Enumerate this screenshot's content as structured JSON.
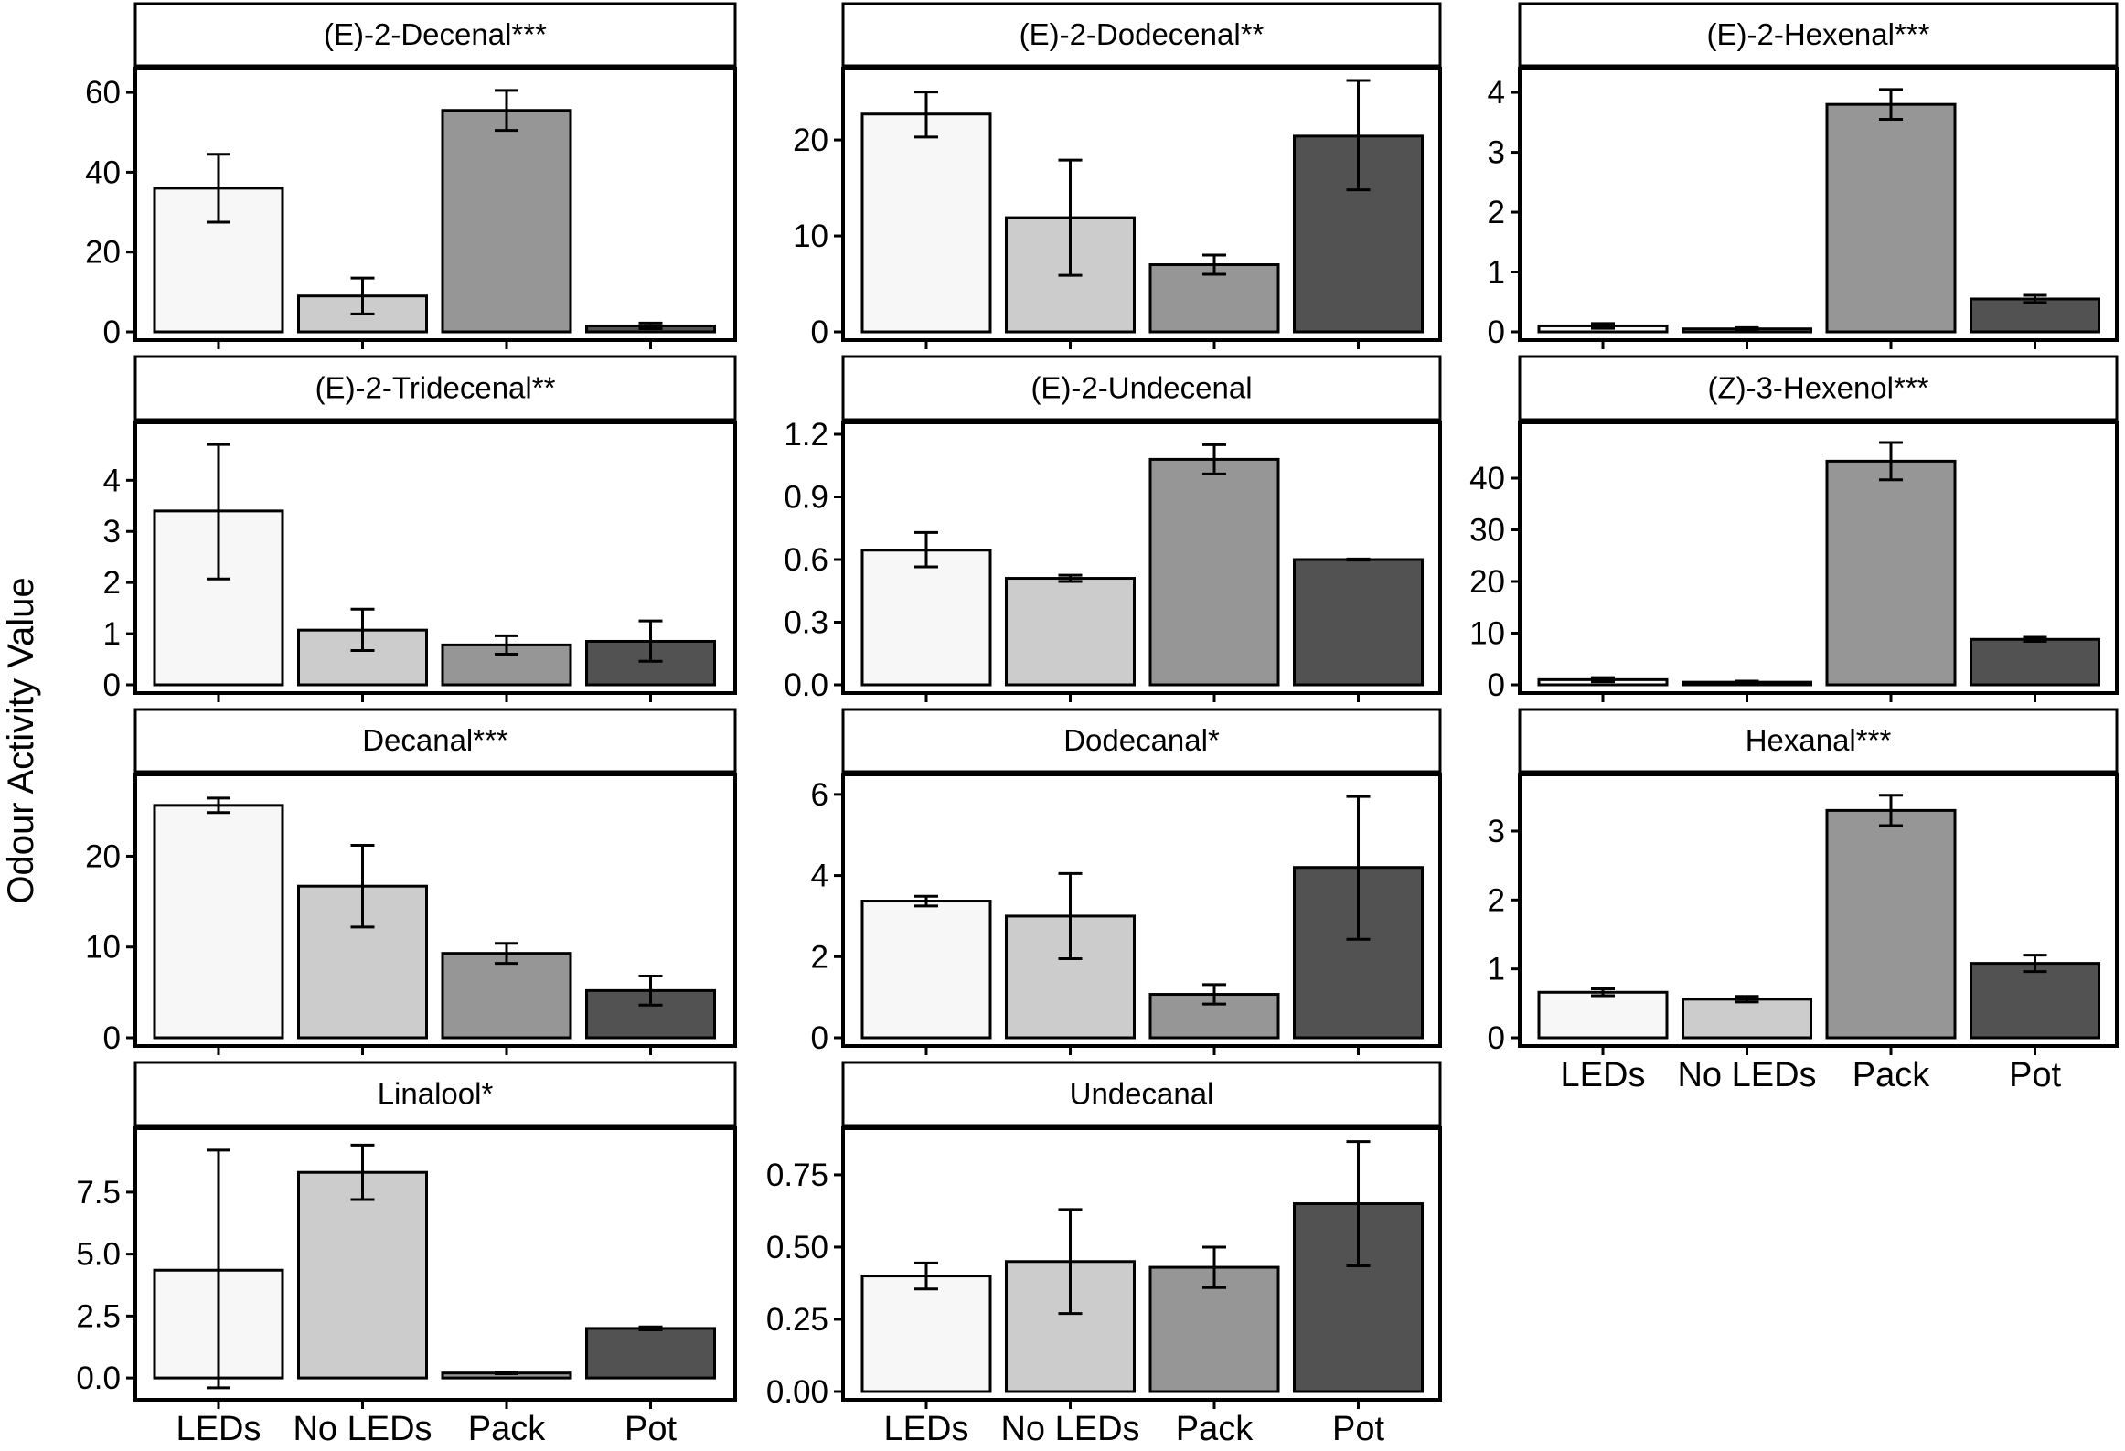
{
  "chart_data": {
    "type": "bar",
    "layout": "facet-grid",
    "ylabel": "Odour Activity Value",
    "xlabel": "",
    "categories": [
      "LEDs",
      "No LEDs",
      "Pack",
      "Pot"
    ],
    "bar_colors": [
      "#f7f7f7",
      "#cccccc",
      "#969696",
      "#525252"
    ],
    "error_bars": "mean ± error",
    "panels": [
      {
        "title": "(E)-2-Decenal***",
        "ylim": [
          0,
          63
        ],
        "yticks": [
          "0",
          "20",
          "40",
          "60"
        ],
        "ytick_values": [
          0,
          20,
          40,
          60
        ],
        "values": [
          36,
          9,
          55.5,
          1.5
        ],
        "lower": [
          27.5,
          4.5,
          50.5,
          0.8
        ],
        "upper": [
          44.5,
          13.5,
          60.5,
          2.2
        ]
      },
      {
        "title": "(E)-2-Dodecenal**",
        "ylim": [
          0,
          26.2
        ],
        "yticks": [
          "0",
          "10",
          "20"
        ],
        "ytick_values": [
          0,
          10,
          20
        ],
        "values": [
          22.7,
          11.9,
          7,
          20.4
        ],
        "lower": [
          20.3,
          5.9,
          6,
          14.8
        ],
        "upper": [
          25,
          17.9,
          8,
          26.2
        ]
      },
      {
        "title": "(E)-2-Hexenal***",
        "ylim": [
          0,
          4.2
        ],
        "yticks": [
          "0",
          "1",
          "2",
          "3",
          "4"
        ],
        "ytick_values": [
          0,
          1,
          2,
          3,
          4
        ],
        "values": [
          0.1,
          0.05,
          3.8,
          0.55
        ],
        "lower": [
          0.06,
          0.03,
          3.55,
          0.49
        ],
        "upper": [
          0.14,
          0.07,
          4.05,
          0.61
        ]
      },
      {
        "title": "(E)-2-Tridecenal**",
        "ylim": [
          0,
          4.9
        ],
        "yticks": [
          "0",
          "1",
          "2",
          "3",
          "4"
        ],
        "ytick_values": [
          0,
          1,
          2,
          3,
          4
        ],
        "values": [
          3.4,
          1.07,
          0.78,
          0.85
        ],
        "lower": [
          2.07,
          0.67,
          0.6,
          0.46
        ],
        "upper": [
          4.7,
          1.48,
          0.96,
          1.25
        ]
      },
      {
        "title": "(E)-2-Undecenal",
        "ylim": [
          0,
          1.2
        ],
        "yticks": [
          "0.0",
          "0.3",
          "0.6",
          "0.9",
          "1.2"
        ],
        "ytick_values": [
          0,
          0.3,
          0.6,
          0.9,
          1.2
        ],
        "values": [
          0.645,
          0.51,
          1.08,
          0.6
        ],
        "lower": [
          0.565,
          0.495,
          1.01,
          0.597
        ],
        "upper": [
          0.73,
          0.525,
          1.15,
          0.603
        ]
      },
      {
        "title": "(Z)-3-Hexenol***",
        "ylim": [
          0,
          48.5
        ],
        "yticks": [
          "0",
          "10",
          "20",
          "30",
          "40"
        ],
        "ytick_values": [
          0,
          10,
          20,
          30,
          40
        ],
        "values": [
          1,
          0.5,
          43.3,
          8.8
        ],
        "lower": [
          0.6,
          0.3,
          39.7,
          8.4
        ],
        "upper": [
          1.4,
          0.7,
          46.9,
          9.2
        ]
      },
      {
        "title": "Decanal***",
        "ylim": [
          0,
          27.7
        ],
        "yticks": [
          "0",
          "10",
          "20"
        ],
        "ytick_values": [
          0,
          10,
          20
        ],
        "values": [
          25.6,
          16.7,
          9.3,
          5.2
        ],
        "lower": [
          24.8,
          12.2,
          8.2,
          3.6
        ],
        "upper": [
          26.4,
          21.2,
          10.4,
          6.8
        ]
      },
      {
        "title": "Dodecanal*",
        "ylim": [
          0,
          6.2
        ],
        "yticks": [
          "0",
          "2",
          "4",
          "6"
        ],
        "ytick_values": [
          0,
          2,
          4,
          6
        ],
        "values": [
          3.37,
          3,
          1.07,
          4.2
        ],
        "lower": [
          3.25,
          1.95,
          0.83,
          2.43
        ],
        "upper": [
          3.49,
          4.05,
          1.31,
          5.95
        ]
      },
      {
        "title": "Hexanal***",
        "ylim": [
          0,
          3.65
        ],
        "yticks": [
          "0",
          "1",
          "2",
          "3"
        ],
        "ytick_values": [
          0,
          1,
          2,
          3
        ],
        "values": [
          0.66,
          0.56,
          3.3,
          1.08
        ],
        "lower": [
          0.61,
          0.52,
          3.08,
          0.96
        ],
        "upper": [
          0.71,
          0.6,
          3.52,
          1.2
        ]
      },
      {
        "title": "Linalool*",
        "ylim": [
          -0.55,
          9.6
        ],
        "yticks": [
          "0.0",
          "2.5",
          "5.0",
          "7.5"
        ],
        "ytick_values": [
          0,
          2.5,
          5,
          7.5
        ],
        "values": [
          4.35,
          8.3,
          0.2,
          2
        ],
        "lower": [
          -0.4,
          7.2,
          0.17,
          1.94
        ],
        "upper": [
          9.2,
          9.4,
          0.23,
          2.06
        ]
      },
      {
        "title": "Undecanal",
        "ylim": [
          0,
          0.87
        ],
        "yticks": [
          "0.00",
          "0.25",
          "0.50",
          "0.75"
        ],
        "ytick_values": [
          0,
          0.25,
          0.5,
          0.75
        ],
        "values": [
          0.4,
          0.45,
          0.43,
          0.65
        ],
        "lower": [
          0.355,
          0.27,
          0.36,
          0.435
        ],
        "upper": [
          0.445,
          0.63,
          0.5,
          0.865
        ]
      }
    ]
  }
}
